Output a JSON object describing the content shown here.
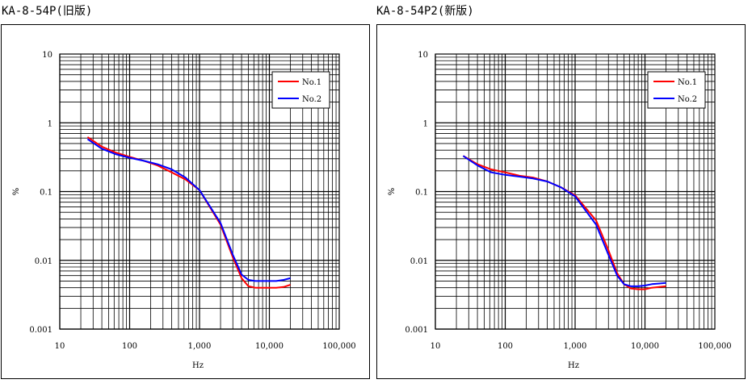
{
  "chart_data": [
    {
      "type": "line",
      "title": "KA-8-54P(旧版)",
      "xlabel": "Hz",
      "ylabel": "%",
      "xscale": "log",
      "yscale": "log",
      "xlim": [
        10,
        100000
      ],
      "ylim": [
        0.001,
        10
      ],
      "x_ticks": [
        "10",
        "100",
        "1,000",
        "10,000",
        "100,000"
      ],
      "y_ticks": [
        "0.001",
        "0.01",
        "0.1",
        "1",
        "10"
      ],
      "grid": true,
      "legend_position": "top-right",
      "series": [
        {
          "name": "No.1",
          "color": "#ff0000",
          "x": [
            25,
            40,
            63,
            100,
            160,
            250,
            400,
            630,
            1000,
            2000,
            3000,
            4000,
            5000,
            6300,
            8000,
            10000,
            12500,
            16000,
            20000
          ],
          "y": [
            0.62,
            0.45,
            0.37,
            0.32,
            0.28,
            0.24,
            0.19,
            0.15,
            0.105,
            0.033,
            0.011,
            0.0055,
            0.0042,
            0.004,
            0.004,
            0.004,
            0.004,
            0.0041,
            0.0044
          ]
        },
        {
          "name": "No.2",
          "color": "#0000ff",
          "x": [
            25,
            40,
            63,
            100,
            160,
            250,
            400,
            630,
            1000,
            2000,
            3000,
            4000,
            5000,
            6300,
            8000,
            10000,
            12500,
            16000,
            20000
          ],
          "y": [
            0.58,
            0.42,
            0.35,
            0.31,
            0.28,
            0.25,
            0.21,
            0.16,
            0.105,
            0.035,
            0.012,
            0.0062,
            0.0052,
            0.005,
            0.005,
            0.005,
            0.005,
            0.0052,
            0.0055
          ]
        }
      ]
    },
    {
      "type": "line",
      "title": "KA-8-54P2(新版)",
      "xlabel": "Hz",
      "ylabel": "%",
      "xscale": "log",
      "yscale": "log",
      "xlim": [
        10,
        100000
      ],
      "ylim": [
        0.001,
        10
      ],
      "x_ticks": [
        "10",
        "100",
        "1,000",
        "10,000",
        "100,000"
      ],
      "y_ticks": [
        "0.001",
        "0.01",
        "0.1",
        "1",
        "10"
      ],
      "grid": true,
      "legend_position": "top-right",
      "series": [
        {
          "name": "No.1",
          "color": "#ff0000",
          "x": [
            25,
            40,
            63,
            100,
            160,
            250,
            400,
            630,
            1000,
            2000,
            3000,
            4000,
            5000,
            6300,
            8000,
            10000,
            12500,
            16000,
            20000
          ],
          "y": [
            0.33,
            0.25,
            0.21,
            0.19,
            0.17,
            0.16,
            0.14,
            0.115,
            0.088,
            0.038,
            0.014,
            0.0065,
            0.0045,
            0.0039,
            0.0038,
            0.0038,
            0.004,
            0.0041,
            0.0042
          ]
        },
        {
          "name": "No.2",
          "color": "#0000ff",
          "x": [
            25,
            40,
            63,
            100,
            160,
            250,
            400,
            630,
            1000,
            2000,
            3000,
            4000,
            5000,
            6300,
            8000,
            10000,
            12500,
            16000,
            20000
          ],
          "y": [
            0.33,
            0.24,
            0.19,
            0.175,
            0.165,
            0.155,
            0.14,
            0.115,
            0.085,
            0.033,
            0.012,
            0.006,
            0.0045,
            0.0042,
            0.0042,
            0.0043,
            0.0045,
            0.0046,
            0.0047
          ]
        }
      ]
    }
  ]
}
